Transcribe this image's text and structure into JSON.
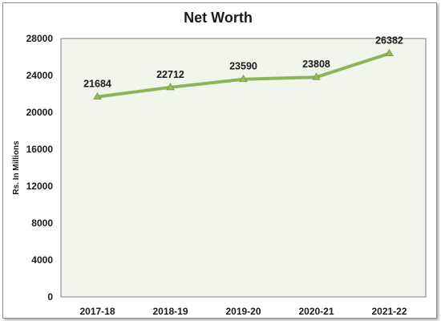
{
  "chart_data": {
    "type": "line",
    "title": "Net Worth",
    "ylabel": "Rs. In Millions",
    "xlabel": "",
    "categories": [
      "2017-18",
      "2018-19",
      "2019-20",
      "2020-21",
      "2021-22"
    ],
    "series": [
      {
        "values": [
          21684,
          22712,
          23590,
          23808,
          26382
        ],
        "color": "#8fb35a"
      }
    ],
    "ylim": [
      0,
      28000
    ],
    "yticks": [
      0,
      4000,
      8000,
      12000,
      16000,
      20000,
      24000,
      28000
    ],
    "grid": false,
    "legend": "none",
    "plot_background": "#f1f5ec"
  }
}
